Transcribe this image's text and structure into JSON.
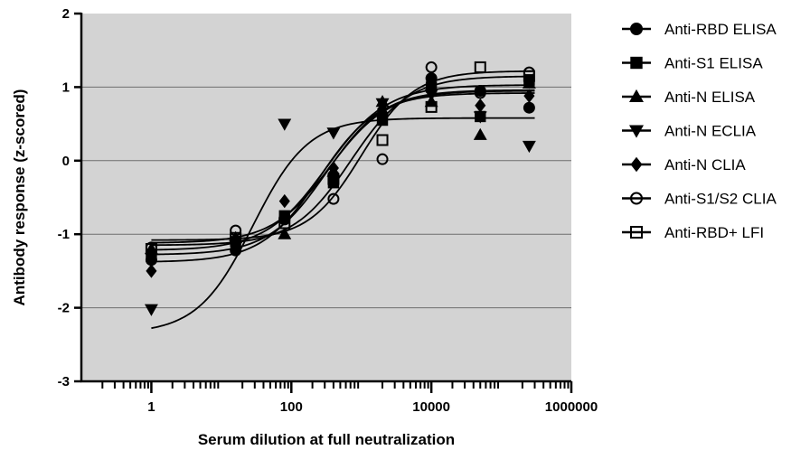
{
  "chart_data": {
    "type": "scatter",
    "title": "",
    "xlabel": "Serum dilution at full neutralization",
    "ylabel": "Antibody response (z-scored)",
    "x_scale": "log",
    "xlim": [
      0.1,
      1000000
    ],
    "ylim": [
      -3,
      2
    ],
    "x_ticks": [
      1,
      100,
      10000,
      1000000
    ],
    "x_tick_labels": [
      "1",
      "100",
      "10000",
      "1000000"
    ],
    "y_ticks": [
      -3,
      -2,
      -1,
      0,
      1,
      2
    ],
    "y_tick_labels": [
      "-3",
      "-2",
      "-1",
      "0",
      "1",
      "2"
    ],
    "grid": "horizontal",
    "plot_background": "#d3d3d3",
    "legend_position": "right",
    "series": [
      {
        "name": "Anti-RBD ELISA",
        "marker": "circle-filled",
        "points": [
          [
            1,
            -1.35
          ],
          [
            16,
            -1.22
          ],
          [
            80,
            -0.78
          ],
          [
            400,
            -0.2
          ],
          [
            2000,
            0.62
          ],
          [
            10000,
            1.12
          ],
          [
            50000,
            0.95
          ],
          [
            250000,
            0.72
          ]
        ],
        "fit": {
          "bottom": -1.28,
          "top": 0.96,
          "logEC50": 2.5,
          "hill": 1.05
        }
      },
      {
        "name": "Anti-S1 ELISA",
        "marker": "square-filled",
        "points": [
          [
            1,
            -1.3
          ],
          [
            16,
            -1.1
          ],
          [
            80,
            -0.75
          ],
          [
            400,
            -0.3
          ],
          [
            2000,
            0.55
          ],
          [
            10000,
            1.0
          ],
          [
            50000,
            0.6
          ],
          [
            250000,
            1.1
          ]
        ],
        "fit": {
          "bottom": -1.22,
          "top": 1.03,
          "logEC50": 2.5,
          "hill": 1.0
        }
      },
      {
        "name": "Anti-N ELISA",
        "marker": "triangle-up-filled",
        "points": [
          [
            1,
            -1.2
          ],
          [
            16,
            -1.05
          ],
          [
            80,
            -1.0
          ],
          [
            400,
            -0.15
          ],
          [
            2000,
            0.8
          ],
          [
            10000,
            0.8
          ],
          [
            50000,
            0.35
          ],
          [
            250000,
            1.05
          ]
        ],
        "fit": {
          "bottom": -1.12,
          "top": 0.95,
          "logEC50": 2.55,
          "hill": 1.05
        }
      },
      {
        "name": "Anti-N ECLIA",
        "marker": "triangle-down-filled",
        "points": [
          [
            1,
            -2.02
          ],
          [
            16,
            -1.15
          ],
          [
            80,
            0.5
          ],
          [
            400,
            0.38
          ],
          [
            2000,
            0.78
          ],
          [
            10000,
            0.9
          ],
          [
            50000,
            0.6
          ],
          [
            250000,
            0.2
          ]
        ],
        "fit": {
          "bottom": -2.35,
          "top": 0.58,
          "logEC50": 1.45,
          "hill": 1.1
        }
      },
      {
        "name": "Anti-N CLIA",
        "marker": "diamond-filled",
        "points": [
          [
            1,
            -1.5
          ],
          [
            16,
            -1.1
          ],
          [
            80,
            -0.55
          ],
          [
            400,
            -0.1
          ],
          [
            2000,
            0.7
          ],
          [
            10000,
            0.95
          ],
          [
            50000,
            0.75
          ],
          [
            250000,
            0.88
          ]
        ],
        "fit": {
          "bottom": -1.38,
          "top": 0.92,
          "logEC50": 2.4,
          "hill": 1.05
        }
      },
      {
        "name": "Anti-S1/S2 CLIA",
        "marker": "circle-open",
        "points": [
          [
            1,
            -1.18
          ],
          [
            16,
            -0.95
          ],
          [
            80,
            -0.8
          ],
          [
            400,
            -0.52
          ],
          [
            2000,
            0.02
          ],
          [
            10000,
            1.27
          ],
          [
            50000,
            0.92
          ],
          [
            250000,
            1.2
          ]
        ],
        "fit": {
          "bottom": -1.08,
          "top": 1.22,
          "logEC50": 3.0,
          "hill": 1.15
        }
      },
      {
        "name": "Anti-RBD+ LFI",
        "marker": "square-open",
        "points": [
          [
            1,
            -1.2
          ],
          [
            16,
            -1.05
          ],
          [
            80,
            -0.85
          ],
          [
            400,
            -0.25
          ],
          [
            2000,
            0.28
          ],
          [
            10000,
            0.73
          ],
          [
            50000,
            1.27
          ],
          [
            250000,
            1.15
          ]
        ],
        "fit": {
          "bottom": -1.15,
          "top": 1.15,
          "logEC50": 2.85,
          "hill": 1.05
        }
      }
    ]
  }
}
